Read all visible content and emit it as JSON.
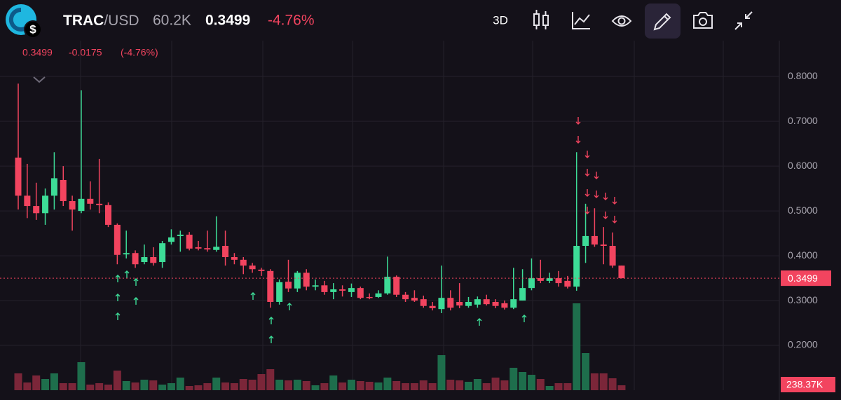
{
  "header": {
    "base": "TRAC",
    "quote": "/USD",
    "volume": "60.2K",
    "price": "0.3499",
    "change": "-4.76%",
    "interval": "3D"
  },
  "legend": {
    "price": "0.3499",
    "change": "-0.0175",
    "change_pct": "(-4.76%)"
  },
  "chart_data": {
    "type": "candlestick",
    "up_color": "#3ddc97",
    "down_color": "#f2445f",
    "volume_up_color": "#1e6e4c",
    "volume_down_color": "#7b2639",
    "ylim": [
      0.1,
      0.88
    ],
    "yticks": [
      {
        "value": 0.2,
        "label": "0.2000"
      },
      {
        "value": 0.3,
        "label": "0.3000"
      },
      {
        "value": 0.4,
        "label": "0.4000"
      },
      {
        "value": 0.5,
        "label": "0.5000"
      },
      {
        "value": 0.6,
        "label": "0.6000"
      },
      {
        "value": 0.7,
        "label": "0.7000"
      },
      {
        "value": 0.8,
        "label": "0.8000"
      }
    ],
    "grid": true,
    "last_price": 0.3499,
    "last_volume_label": "238.37K",
    "open": [
      0.619,
      0.534,
      0.511,
      0.495,
      0.534,
      0.569,
      0.522,
      0.5,
      0.527,
      0.516,
      0.513,
      0.469,
      0.403,
      0.406,
      0.386,
      0.397,
      0.386,
      0.431,
      0.444,
      0.447,
      0.419,
      0.417,
      0.413,
      0.422,
      0.397,
      0.391,
      0.378,
      0.369,
      0.366,
      0.297,
      0.342,
      0.327,
      0.362,
      0.331,
      0.334,
      0.319,
      0.325,
      0.319,
      0.328,
      0.308,
      0.308,
      0.316,
      0.353,
      0.313,
      0.306,
      0.303,
      0.288,
      0.281,
      0.306,
      0.297,
      0.288,
      0.291,
      0.303,
      0.297,
      0.294,
      0.284,
      0.3,
      0.328,
      0.35,
      0.344,
      0.35,
      0.344,
      0.331,
      0.422,
      0.444,
      0.425,
      0.422,
      0.378
    ],
    "high": [
      0.784,
      0.605,
      0.563,
      0.55,
      0.631,
      0.6,
      0.534,
      0.769,
      0.566,
      0.616,
      0.519,
      0.472,
      0.456,
      0.412,
      0.425,
      0.419,
      0.433,
      0.459,
      0.456,
      0.453,
      0.433,
      0.456,
      0.488,
      0.456,
      0.406,
      0.397,
      0.384,
      0.373,
      0.37,
      0.347,
      0.391,
      0.366,
      0.37,
      0.347,
      0.344,
      0.339,
      0.334,
      0.338,
      0.331,
      0.316,
      0.323,
      0.398,
      0.356,
      0.319,
      0.323,
      0.311,
      0.297,
      0.378,
      0.323,
      0.339,
      0.308,
      0.309,
      0.313,
      0.303,
      0.3,
      0.373,
      0.37,
      0.394,
      0.391,
      0.362,
      0.366,
      0.355,
      0.631,
      0.516,
      0.506,
      0.464,
      0.452,
      0.378
    ],
    "low": [
      0.503,
      0.484,
      0.48,
      0.469,
      0.503,
      0.511,
      0.456,
      0.495,
      0.503,
      0.495,
      0.464,
      0.381,
      0.394,
      0.373,
      0.381,
      0.378,
      0.373,
      0.425,
      0.409,
      0.412,
      0.412,
      0.409,
      0.409,
      0.378,
      0.381,
      0.359,
      0.362,
      0.355,
      0.284,
      0.291,
      0.319,
      0.319,
      0.323,
      0.323,
      0.313,
      0.303,
      0.309,
      0.308,
      0.303,
      0.303,
      0.306,
      0.313,
      0.308,
      0.297,
      0.297,
      0.284,
      0.278,
      0.272,
      0.278,
      0.283,
      0.284,
      0.284,
      0.289,
      0.283,
      0.28,
      0.281,
      0.3,
      0.323,
      0.339,
      0.339,
      0.331,
      0.327,
      0.322,
      0.384,
      0.42,
      0.381,
      0.373,
      0.3499
    ],
    "close": [
      0.534,
      0.511,
      0.495,
      0.534,
      0.573,
      0.522,
      0.503,
      0.527,
      0.516,
      0.513,
      0.469,
      0.402,
      0.406,
      0.381,
      0.397,
      0.384,
      0.428,
      0.441,
      0.447,
      0.416,
      0.416,
      0.414,
      0.42,
      0.397,
      0.391,
      0.378,
      0.37,
      0.366,
      0.297,
      0.341,
      0.327,
      0.362,
      0.331,
      0.334,
      0.319,
      0.325,
      0.322,
      0.328,
      0.306,
      0.306,
      0.316,
      0.353,
      0.313,
      0.303,
      0.3,
      0.288,
      0.283,
      0.306,
      0.284,
      0.289,
      0.297,
      0.303,
      0.292,
      0.288,
      0.284,
      0.303,
      0.328,
      0.35,
      0.344,
      0.35,
      0.339,
      0.331,
      0.422,
      0.444,
      0.425,
      0.422,
      0.378,
      0.3499
    ],
    "volume": [
      816000,
      374000,
      714000,
      544000,
      816000,
      340000,
      340000,
      1360000,
      272000,
      340000,
      272000,
      952000,
      442000,
      374000,
      510000,
      476000,
      272000,
      340000,
      612000,
      204000,
      238000,
      340000,
      612000,
      374000,
      340000,
      544000,
      510000,
      782000,
      1020000,
      510000,
      476000,
      510000,
      442000,
      238000,
      340000,
      714000,
      374000,
      510000,
      442000,
      408000,
      374000,
      612000,
      442000,
      340000,
      340000,
      476000,
      340000,
      1700000,
      510000,
      476000,
      408000,
      544000,
      340000,
      612000,
      476000,
      1088000,
      884000,
      748000,
      544000,
      204000,
      340000,
      340000,
      4216000,
      1802000,
      816000,
      816000,
      578000,
      238370
    ]
  }
}
